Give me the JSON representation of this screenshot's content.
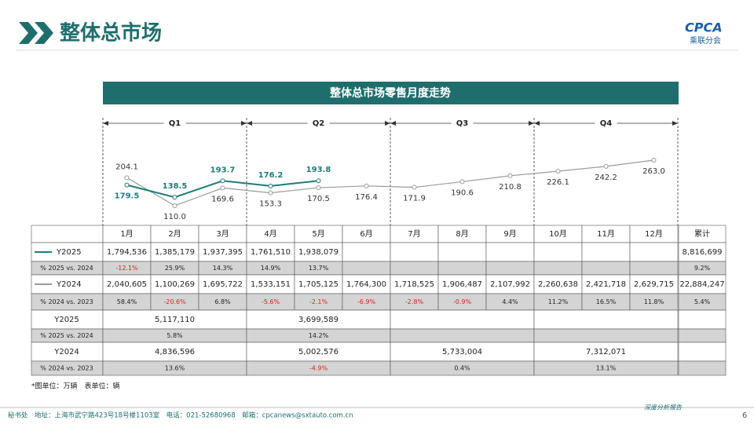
{
  "header": {
    "title": "整体总市场",
    "logo": "CPCA",
    "logo_sub": "乘联分会"
  },
  "chart_data": {
    "type": "line",
    "title": "整体总市场零售月度走势",
    "quarters": [
      "Q1",
      "Q2",
      "Q3",
      "Q4"
    ],
    "categories": [
      "1月",
      "2月",
      "3月",
      "4月",
      "5月",
      "6月",
      "7月",
      "8月",
      "9月",
      "10月",
      "11月",
      "12月"
    ],
    "series": [
      {
        "name": "Y2025",
        "color": "#1f7a7a",
        "values": [
          179.5,
          138.5,
          193.7,
          176.2,
          193.8,
          null,
          null,
          null,
          null,
          null,
          null,
          null
        ],
        "value_labels": [
          "179.5",
          "138.5",
          "193.7",
          "176.2",
          "193.8",
          null,
          null,
          null,
          null,
          null,
          null,
          null
        ]
      },
      {
        "name": "Y2024",
        "color": "#9a9a9a",
        "values": [
          204.1,
          110.0,
          169.6,
          153.3,
          170.5,
          176.4,
          171.9,
          190.6,
          210.8,
          226.1,
          242.2,
          263.0
        ],
        "value_labels": [
          "204.1",
          "110.0",
          "169.6",
          "153.3",
          "170.5",
          "176.4",
          "171.9",
          "190.6",
          "210.8",
          "226.1",
          "242.2",
          "263.0"
        ]
      }
    ]
  },
  "table": {
    "total_header": "累计",
    "monthly_rows": [
      {
        "series": 0,
        "cells": [
          "1,794,536",
          "1,385,179",
          "1,937,395",
          "1,761,510",
          "1,938,079",
          null,
          null,
          null,
          null,
          null,
          null,
          null
        ],
        "total": "8,816,699"
      },
      {
        "label": "% 2025 vs. 2024",
        "cells": [
          "-12.1%",
          "25.9%",
          "14.3%",
          "14.9%",
          "13.7%",
          null,
          null,
          null,
          null,
          null,
          null,
          null
        ],
        "total": "9.2%"
      },
      {
        "series": 1,
        "cells": [
          "2,040,605",
          "1,100,269",
          "1,695,722",
          "1,533,151",
          "1,705,125",
          "1,764,300",
          "1,718,525",
          "1,906,487",
          "2,107,992",
          "2,260,638",
          "2,421,718",
          "2,629,715"
        ],
        "total": "22,884,247"
      },
      {
        "label": "% 2024 vs. 2023",
        "cells": [
          "58.4%",
          "-20.6%",
          "6.8%",
          "-5.6%",
          "-2.1%",
          "-6.9%",
          "-2.8%",
          "-0.9%",
          "4.4%",
          "11.2%",
          "16.5%",
          "11.8%"
        ],
        "total": "5.4%"
      }
    ],
    "quarterly_rows": [
      {
        "label": "Y2025",
        "cells": [
          "5,117,110",
          "3,699,589",
          null,
          null
        ]
      },
      {
        "label": "% 2025 vs. 2024",
        "cells": [
          "5.8%",
          "14.2%",
          null,
          null
        ]
      },
      {
        "label": "Y2024",
        "cells": [
          "4,836,596",
          "5,002,576",
          "5,733,004",
          "7,312,071"
        ]
      },
      {
        "label": "% 2024 vs. 2023",
        "cells": [
          "13.6%",
          "-4.9%",
          "0.4%",
          "13.1%"
        ]
      }
    ]
  },
  "note": "*图单位：万辆　表单位：辆",
  "footer": {
    "address": "秘书处　地址：上海市武宁路423号18号楼1103室　电话：021-52680968　邮箱：cpcanews@sxtauto.com.cn",
    "tag": "深度分析报告",
    "page": "6"
  }
}
